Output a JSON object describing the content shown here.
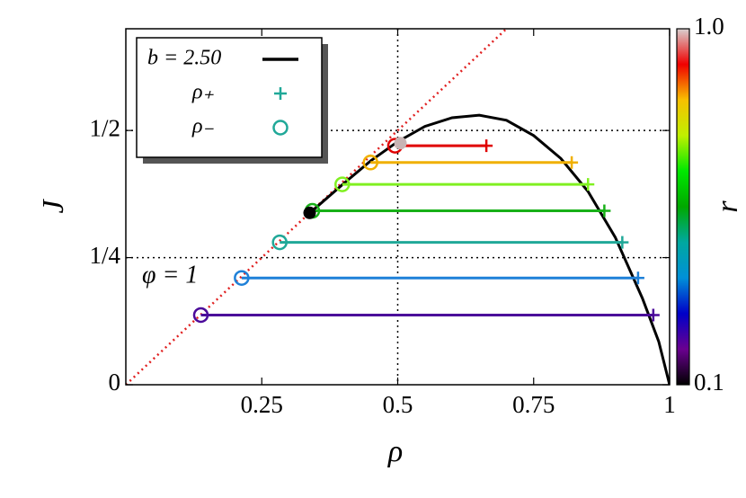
{
  "chart_data": {
    "type": "phase",
    "xlabel": "ρ",
    "ylabel": "J",
    "xlim": [
      0,
      1
    ],
    "ylim": [
      0,
      0.7
    ],
    "xticks": [
      0.25,
      0.5,
      0.75,
      1
    ],
    "yticks": [
      {
        "value": 0,
        "label": "0"
      },
      {
        "value": 0.25,
        "label": "1/4"
      },
      {
        "value": 0.5,
        "label": "1/2"
      }
    ],
    "guide_lines": {
      "x": [
        0.5
      ],
      "y": [
        0.25,
        0.5
      ]
    },
    "curve": {
      "color": "#000000",
      "x": [
        0.33,
        0.4,
        0.45,
        0.5,
        0.55,
        0.6,
        0.65,
        0.7,
        0.75,
        0.8,
        0.85,
        0.9,
        0.95,
        0.98,
        1
      ],
      "y": [
        0.33,
        0.395,
        0.44,
        0.478,
        0.508,
        0.525,
        0.53,
        0.52,
        0.49,
        0.445,
        0.38,
        0.29,
        0.17,
        0.085,
        0
      ]
    },
    "diagonal": {
      "color": "#e02020",
      "x": [
        0,
        1
      ],
      "y": [
        0,
        1
      ]
    },
    "series": [
      {
        "color": "#4b0a9a",
        "x": [
          0.138,
          0.97
        ],
        "values": [
          0.137,
          0.137
        ]
      },
      {
        "color": "#1e80d8",
        "x": [
          0.213,
          0.942
        ],
        "values": [
          0.21,
          0.21
        ]
      },
      {
        "color": "#20a898",
        "x": [
          0.283,
          0.913
        ],
        "values": [
          0.28,
          0.28
        ]
      },
      {
        "color": "#18b018",
        "x": [
          0.343,
          0.88
        ],
        "values": [
          0.342,
          0.342
        ]
      },
      {
        "color": "#80f020",
        "x": [
          0.398,
          0.85
        ],
        "values": [
          0.394,
          0.394
        ]
      },
      {
        "color": "#f0b000",
        "x": [
          0.45,
          0.82
        ],
        "values": [
          0.437,
          0.437
        ]
      },
      {
        "color": "#e00000",
        "x": [
          0.495,
          0.663
        ],
        "values": [
          0.47,
          0.47
        ]
      }
    ],
    "points": [
      {
        "x": 0.338,
        "y": 0.338,
        "color": "#000000"
      },
      {
        "x": 0.505,
        "y": 0.475,
        "color": "#c8b4b4"
      }
    ],
    "annotation": "φ = 1",
    "legend": {
      "position": "upper left",
      "entries": [
        {
          "label": "b = 2.50",
          "marker": "line",
          "color": "#000000"
        },
        {
          "label": "ρ₊",
          "marker": "plus",
          "color": "#20a898"
        },
        {
          "label": "ρ₋",
          "marker": "circle",
          "color": "#20a898"
        }
      ]
    },
    "colorbar": {
      "label": "r",
      "log": true,
      "lim": [
        0.1,
        1.0
      ],
      "ticks": [
        {
          "value": 0.1,
          "label": "0.1"
        },
        {
          "value": 1.0,
          "label": "1.0"
        }
      ],
      "colors": [
        "#000000",
        "#6a0090",
        "#0000c8",
        "#0090d8",
        "#00a8a0",
        "#00a800",
        "#00e800",
        "#c0f000",
        "#f8c000",
        "#f00000",
        "#d8d0d0"
      ]
    }
  }
}
